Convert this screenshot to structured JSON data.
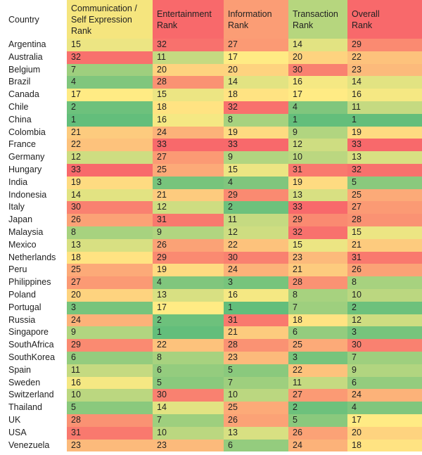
{
  "chart_data": {
    "type": "heatmap",
    "columns": [
      {
        "key": "country",
        "label_lines": [
          "Country"
        ],
        "color": "#ffffff"
      },
      {
        "key": "communication",
        "label_lines": [
          "Communication /",
          "Self Expression",
          "Rank"
        ],
        "color": "#f5e57e"
      },
      {
        "key": "entertainment",
        "label_lines": [
          "Entertainment",
          "Rank"
        ],
        "color": "#f8696b"
      },
      {
        "key": "information",
        "label_lines": [
          "Information",
          "Rank"
        ],
        "color": "#fb9d75"
      },
      {
        "key": "transaction",
        "label_lines": [
          "Transaction",
          "Rank"
        ],
        "color": "#b6d67e"
      },
      {
        "key": "overall",
        "label_lines": [
          "Overall",
          "Rank"
        ],
        "color": "#f8696b"
      }
    ],
    "color_scale": {
      "min": 1,
      "mid": 17,
      "max": 33,
      "low_color": "#63be7b",
      "mid_color": "#ffeb84",
      "high_color": "#f8696b"
    },
    "rows": [
      {
        "country": "Argentina",
        "values": [
          15,
          32,
          27,
          14,
          29
        ]
      },
      {
        "country": "Australia",
        "values": [
          32,
          11,
          17,
          20,
          22
        ]
      },
      {
        "country": "Belgium",
        "values": [
          7,
          20,
          20,
          30,
          23
        ]
      },
      {
        "country": "Brazil",
        "values": [
          4,
          28,
          14,
          16,
          14
        ]
      },
      {
        "country": "Canada",
        "values": [
          17,
          15,
          18,
          17,
          16
        ]
      },
      {
        "country": "Chile",
        "values": [
          2,
          18,
          32,
          4,
          11
        ]
      },
      {
        "country": "China",
        "values": [
          1,
          16,
          8,
          1,
          1
        ]
      },
      {
        "country": "Colombia",
        "values": [
          21,
          24,
          19,
          9,
          19
        ]
      },
      {
        "country": "France",
        "values": [
          22,
          33,
          33,
          12,
          33
        ]
      },
      {
        "country": "Germany",
        "values": [
          12,
          27,
          9,
          10,
          13
        ]
      },
      {
        "country": "Hungary",
        "values": [
          33,
          25,
          15,
          31,
          32
        ]
      },
      {
        "country": "India",
        "values": [
          19,
          3,
          4,
          19,
          5
        ]
      },
      {
        "country": "Indonesia",
        "values": [
          14,
          21,
          29,
          13,
          25
        ]
      },
      {
        "country": "Italy",
        "values": [
          30,
          12,
          2,
          33,
          27
        ]
      },
      {
        "country": "Japan",
        "values": [
          26,
          31,
          11,
          29,
          28
        ]
      },
      {
        "country": "Malaysia",
        "values": [
          8,
          9,
          12,
          32,
          15
        ]
      },
      {
        "country": "Mexico",
        "values": [
          13,
          26,
          22,
          15,
          21
        ]
      },
      {
        "country": "Netherlands",
        "values": [
          18,
          29,
          30,
          23,
          31
        ]
      },
      {
        "country": "Peru",
        "values": [
          25,
          19,
          24,
          21,
          26
        ]
      },
      {
        "country": "Philippines",
        "values": [
          27,
          4,
          3,
          28,
          8
        ]
      },
      {
        "country": "Poland",
        "values": [
          20,
          13,
          16,
          8,
          10
        ]
      },
      {
        "country": "Portugal",
        "values": [
          3,
          17,
          1,
          7,
          2
        ]
      },
      {
        "country": "Russia",
        "values": [
          24,
          2,
          31,
          18,
          12
        ]
      },
      {
        "country": "Singapore",
        "values": [
          9,
          1,
          21,
          6,
          3
        ]
      },
      {
        "country": "SouthAfrica",
        "values": [
          29,
          22,
          28,
          25,
          30
        ]
      },
      {
        "country": "SouthKorea",
        "values": [
          6,
          8,
          23,
          3,
          7
        ]
      },
      {
        "country": "Spain",
        "values": [
          11,
          6,
          5,
          22,
          9
        ]
      },
      {
        "country": "Sweden",
        "values": [
          16,
          5,
          7,
          11,
          6
        ]
      },
      {
        "country": "Switzerland",
        "values": [
          10,
          30,
          10,
          27,
          24
        ]
      },
      {
        "country": "Thailand",
        "values": [
          5,
          14,
          25,
          2,
          4
        ]
      },
      {
        "country": "UK",
        "values": [
          28,
          7,
          26,
          5,
          17
        ]
      },
      {
        "country": "USA",
        "values": [
          31,
          10,
          13,
          26,
          20
        ]
      },
      {
        "country": "Venezuela",
        "values": [
          23,
          23,
          6,
          24,
          18
        ]
      }
    ]
  }
}
